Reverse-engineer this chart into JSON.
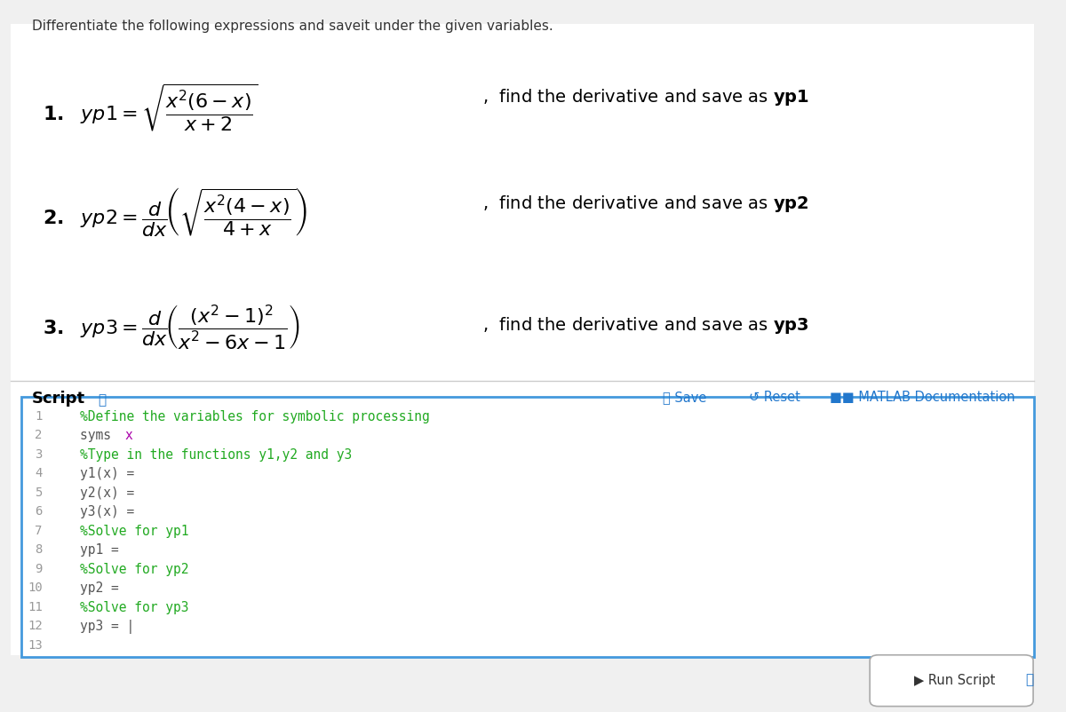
{
  "bg_color": "#f0f0f0",
  "panel_bg": "#ffffff",
  "title_text": "Differentiate the following expressions and saveit under the given variables.",
  "title_fontsize": 11,
  "title_color": "#333333",
  "script_label": "Script",
  "script_fontsize": 13,
  "code_lines": [
    {
      "num": "1",
      "text": "%Define the variables for symbolic processing",
      "color": "#22aa22",
      "special": false
    },
    {
      "num": "2",
      "text": "syms x",
      "color": "#555555",
      "special": true
    },
    {
      "num": "3",
      "text": "%Type in the functions y1,y2 and y3",
      "color": "#22aa22",
      "special": false
    },
    {
      "num": "4",
      "text": "y1(x) =",
      "color": "#555555",
      "special": false
    },
    {
      "num": "5",
      "text": "y2(x) =",
      "color": "#555555",
      "special": false
    },
    {
      "num": "6",
      "text": "y3(x) =",
      "color": "#555555",
      "special": false
    },
    {
      "num": "7",
      "text": "%Solve for yp1",
      "color": "#22aa22",
      "special": false
    },
    {
      "num": "8",
      "text": "yp1 =",
      "color": "#555555",
      "special": false
    },
    {
      "num": "9",
      "text": "%Solve for yp2",
      "color": "#22aa22",
      "special": false
    },
    {
      "num": "10",
      "text": "yp2 =",
      "color": "#555555",
      "special": false
    },
    {
      "num": "11",
      "text": "%Solve for yp3",
      "color": "#22aa22",
      "special": false
    },
    {
      "num": "12",
      "text": "yp3 = |",
      "color": "#555555",
      "special": false
    },
    {
      "num": "13",
      "text": "",
      "color": "#555555",
      "special": false
    }
  ],
  "save_color": "#2277cc",
  "reset_color": "#2277cc",
  "matlab_doc_color": "#2277cc",
  "run_script_bg": "#ffffff",
  "run_script_color": "#333333",
  "editor_border_color": "#4499dd",
  "editor_bg": "#ffffff",
  "line_num_color": "#999999",
  "mono_fontsize": 10.5,
  "eq_fontsize": 16,
  "suffix_fontsize": 14,
  "separator_color": "#cccccc"
}
